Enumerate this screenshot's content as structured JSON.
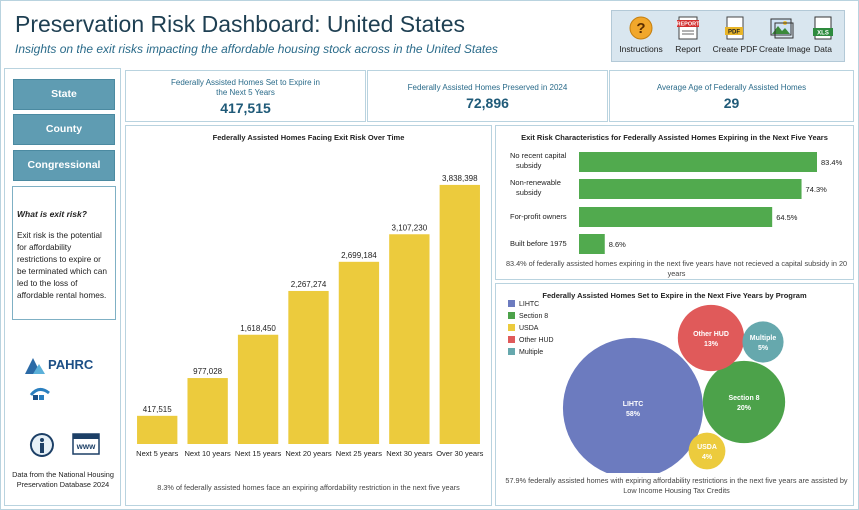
{
  "header": {
    "title": "Preservation Risk Dashboard: United States",
    "subtitle": "Insights on the exit risks impacting the affordable housing stock across in the United States"
  },
  "toolbar": {
    "instructions": "Instructions",
    "report": "Report",
    "report_icon_text": "REPORT",
    "create_pdf": "Create PDF",
    "pdf_icon_text": "PDF",
    "create_image": "Create Image",
    "data": "Data",
    "xls_icon_text": "XLS"
  },
  "sidebar": {
    "state": "State",
    "county": "County",
    "district": "Congressional District",
    "exit_question": "What is exit risk?",
    "exit_definition": "Exit risk is the potential for affordability restrictions to expire or be terminated which can led to the loss of affordable rental homes.",
    "pahrc_logo": "PAHRC",
    "nlihc_logo": "NATIONAL LOW INCOME HOUSING COALITION",
    "www_icon_text": "www",
    "source_note": "Data from the National Housing Preservation Database 2024"
  },
  "kpis": [
    {
      "label": "Federally Assisted Homes Set to Expire in the Next 5 Years",
      "value": "417,515"
    },
    {
      "label": "Federally Assisted Homes Preserved in 2024",
      "value": "72,896"
    },
    {
      "label": "Average Age of Federally Assisted Homes",
      "value": "29"
    }
  ],
  "colors": {
    "bar_yellow": "#eccb3d",
    "bar_green": "#51aa4e",
    "lihtc": "#6c7bbf",
    "section8": "#4ca24a",
    "usda": "#eccb3d",
    "other_hud": "#e05a5a",
    "multiple": "#66a8ad",
    "accent": "#1f5a78"
  },
  "chart_data": [
    {
      "type": "bar",
      "title": "Federally Assisted Homes Facing Exit Risk Over Time",
      "categories": [
        "Next 5 years",
        "Next 10 years",
        "Next 15 years",
        "Next 20 years",
        "Next 25 years",
        "Next 30 years",
        "Over 30 years"
      ],
      "values": [
        417515,
        977028,
        1618450,
        2267274,
        2699184,
        3107230,
        3838398
      ],
      "value_labels": [
        "417,515",
        "977,028",
        "1,618,450",
        "2,267,274",
        "2,699,184",
        "3,107,230",
        "3,838,398"
      ],
      "ylim": [
        0,
        4000000
      ],
      "grid": false,
      "note": "8.3% of federally assisted homes face an expiring affordability restriction in the next five years"
    },
    {
      "type": "bar",
      "orientation": "horizontal",
      "title": "Exit Risk Characteristics for Federally Assisted Homes Expiring in the Next Five Years",
      "categories": [
        "No recent capital subsidy",
        "Non-renewable subsidy",
        "For-profit owners",
        "Built before 1975"
      ],
      "values": [
        83.4,
        74.3,
        64.5,
        8.6
      ],
      "value_labels": [
        "83.4%",
        "74.3%",
        "64.5%",
        "8.6%"
      ],
      "xlim": [
        0,
        100
      ],
      "note": "83.4% of federally assisted homes expiring in the next five years have not recieved a capital subsidy in 20 years"
    },
    {
      "type": "bubble",
      "title": "Federally Assisted Homes Set to Expire in the Next Five Years by Program",
      "legend": [
        "LIHTC",
        "Section 8",
        "USDA",
        "Other HUD",
        "Multiple"
      ],
      "legend_placement": "top-left",
      "bubbles": [
        {
          "name": "LIHTC",
          "value": 58,
          "label": "58%"
        },
        {
          "name": "Section 8",
          "value": 20,
          "label": "20%"
        },
        {
          "name": "Other HUD",
          "value": 13,
          "label": "13%"
        },
        {
          "name": "Multiple",
          "value": 5,
          "label": "5%"
        },
        {
          "name": "USDA",
          "value": 4,
          "label": "4%"
        }
      ],
      "note": "57.9% federally assisted homes with expiring affordability restrictions in the next five years are assisted by Low Income Housing Tax Credits"
    }
  ]
}
